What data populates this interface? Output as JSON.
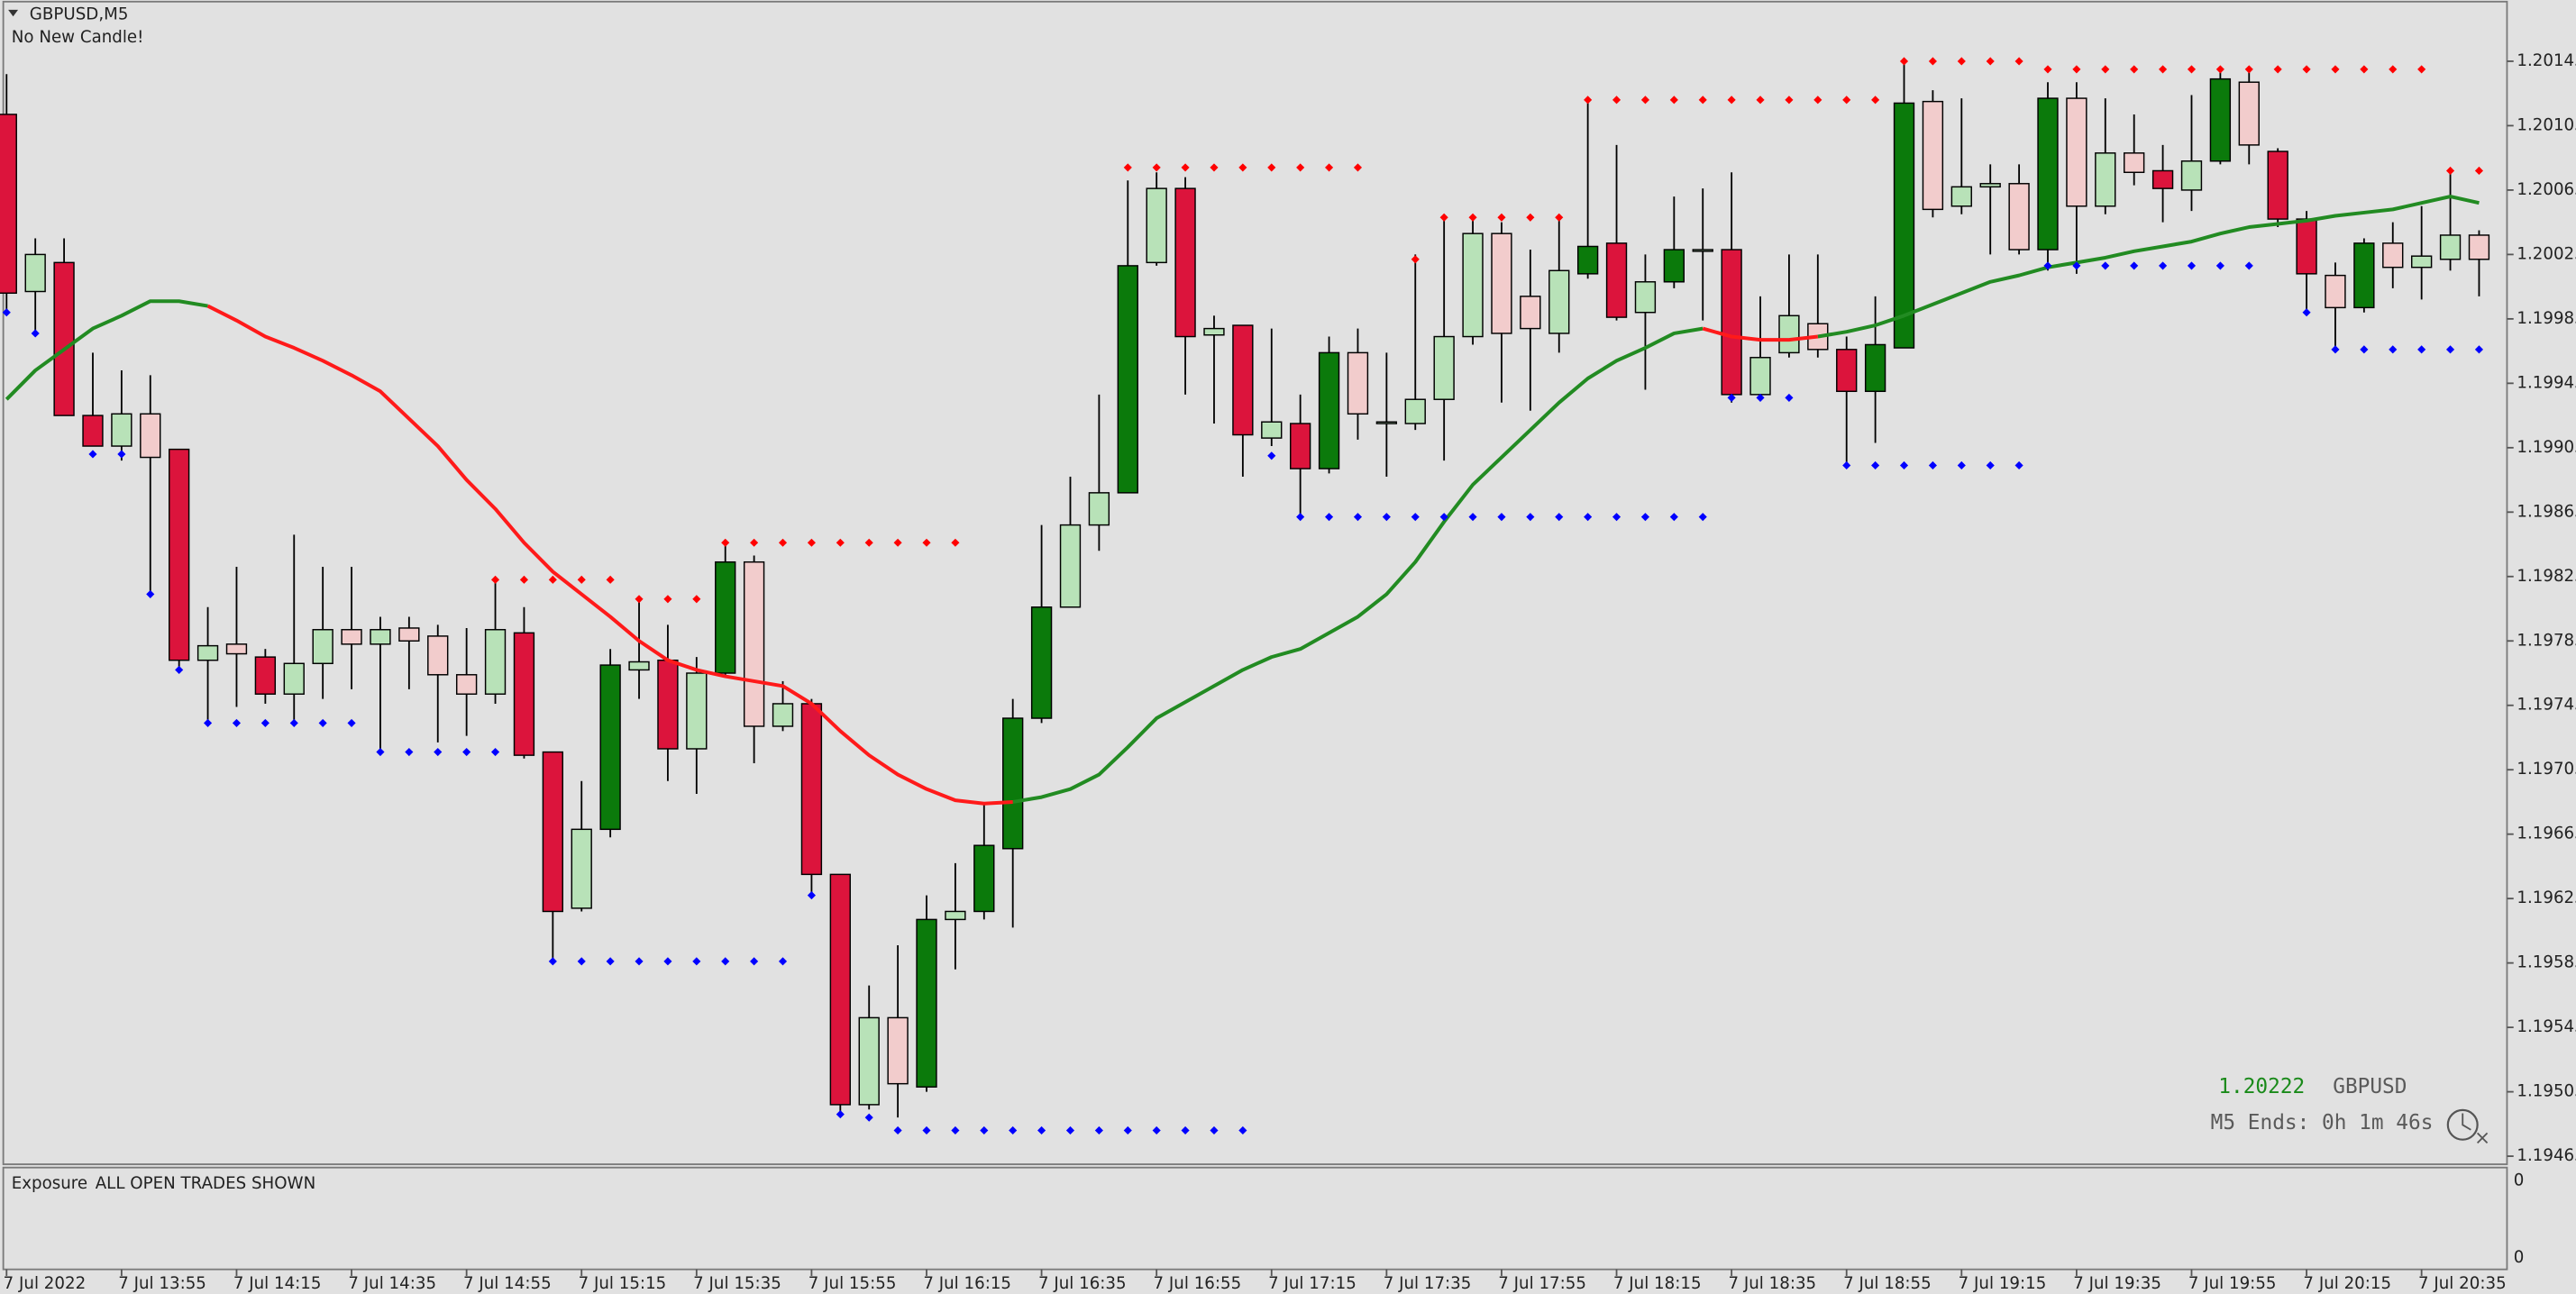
{
  "chart_data": {
    "type": "candlestick",
    "title": "GBPUSD,M5",
    "status": "No New Candle!",
    "ylim": [
      1.19461,
      1.20181
    ],
    "yticks": [
      1.20145,
      1.20105,
      1.20065,
      1.20025,
      1.19985,
      1.19945,
      1.19905,
      1.19865,
      1.19825,
      1.19785,
      1.19745,
      1.19705,
      1.19665,
      1.19625,
      1.19585,
      1.19545,
      1.19505,
      1.19465
    ],
    "grid": false,
    "categories": [
      "7 Jul 2022",
      null,
      null,
      null,
      "7 Jul 13:55",
      null,
      null,
      null,
      "7 Jul 14:15",
      null,
      null,
      null,
      "7 Jul 14:35",
      null,
      null,
      null,
      "7 Jul 14:55",
      null,
      null,
      null,
      "7 Jul 15:15",
      null,
      null,
      null,
      "7 Jul 15:35",
      null,
      null,
      null,
      "7 Jul 15:55",
      null,
      null,
      null,
      "7 Jul 16:15",
      null,
      null,
      null,
      "7 Jul 16:35",
      null,
      null,
      null,
      "7 Jul 16:55",
      null,
      null,
      null,
      "7 Jul 17:15",
      null,
      null,
      null,
      "7 Jul 17:35",
      null,
      null,
      null,
      "7 Jul 17:55",
      null,
      null,
      null,
      "7 Jul 18:15",
      null,
      null,
      null,
      "7 Jul 18:35",
      null,
      null,
      null,
      "7 Jul 18:55",
      null,
      null,
      null,
      "7 Jul 19:15",
      null,
      null,
      null,
      "7 Jul 19:35",
      null,
      null,
      null,
      "7 Jul 19:55",
      null,
      null,
      null,
      "7 Jul 20:15",
      null,
      null,
      null,
      "7 Jul 20:35",
      null,
      null
    ],
    "open": [
      1.20112,
      1.20002,
      1.2002,
      1.19925,
      1.19906,
      1.19926,
      1.19904,
      1.19773,
      1.19783,
      1.19775,
      1.19752,
      1.19771,
      1.19792,
      1.19783,
      1.19793,
      1.19788,
      1.19764,
      1.19752,
      1.1979,
      1.19716,
      1.19619,
      1.19668,
      1.19767,
      1.19773,
      1.19718,
      1.19765,
      1.19834,
      1.19732,
      1.19746,
      1.1964,
      1.19497,
      1.19551,
      1.19508,
      1.19612,
      1.19617,
      1.19656,
      1.19737,
      1.19806,
      1.19857,
      1.19877,
      1.2002,
      1.20066,
      1.19975,
      1.19981,
      1.19911,
      1.1992,
      1.19892,
      1.19964,
      1.19921,
      1.1992,
      1.19935,
      1.19974,
      1.20038,
      1.19999,
      1.19976,
      1.20013,
      1.20032,
      1.19989,
      1.20008,
      1.20028,
      1.20028,
      1.19938,
      1.19964,
      1.19982,
      1.19966,
      1.1994,
      1.19967,
      1.2012,
      1.20055,
      1.20067,
      1.20069,
      1.20028,
      1.20122,
      1.20055,
      1.20088,
      1.20077,
      1.20065,
      1.20083,
      1.20132,
      1.20089,
      1.20047,
      1.20012,
      1.19992,
      1.20032,
      1.20017,
      1.20022,
      1.20037
    ],
    "high": [
      1.20137,
      1.20035,
      1.20035,
      1.19964,
      1.19953,
      1.1995,
      1.19904,
      1.19806,
      1.19831,
      1.1978,
      1.19851,
      1.19831,
      1.19831,
      1.198,
      1.198,
      1.19795,
      1.19793,
      1.19823,
      1.19806,
      1.19716,
      1.19698,
      1.1978,
      1.19811,
      1.19795,
      1.19775,
      1.19848,
      1.19838,
      1.1976,
      1.19749,
      1.1964,
      1.19571,
      1.19596,
      1.19627,
      1.19647,
      1.19683,
      1.19749,
      1.19857,
      1.19887,
      1.19938,
      1.20071,
      1.20076,
      1.20073,
      1.19987,
      1.19981,
      1.19979,
      1.19938,
      1.19974,
      1.19979,
      1.19964,
      1.20025,
      1.2005,
      1.2005,
      1.20045,
      1.20028,
      1.2005,
      1.20122,
      1.20093,
      1.20025,
      1.20061,
      1.20066,
      1.20076,
      1.19999,
      1.20025,
      1.20025,
      1.19974,
      1.19999,
      1.20147,
      1.20127,
      1.20122,
      1.20081,
      1.20081,
      1.20132,
      1.20132,
      1.20122,
      1.20112,
      1.20093,
      1.20124,
      1.2014,
      1.20142,
      1.20091,
      1.20052,
      1.2002,
      1.20035,
      1.20045,
      1.20055,
      1.20076,
      1.2004
    ],
    "low": [
      1.19989,
      1.19974,
      1.19925,
      1.19906,
      1.19897,
      1.19814,
      1.19765,
      1.19736,
      1.19744,
      1.19746,
      1.19736,
      1.19749,
      1.19755,
      1.19717,
      1.19755,
      1.19722,
      1.19726,
      1.19746,
      1.19712,
      1.19586,
      1.19617,
      1.19663,
      1.19749,
      1.19698,
      1.1969,
      1.19763,
      1.19709,
      1.19729,
      1.19627,
      1.19491,
      1.19494,
      1.19489,
      1.19505,
      1.19581,
      1.19612,
      1.19607,
      1.19734,
      1.19806,
      1.19841,
      1.19877,
      1.20018,
      1.19938,
      1.1992,
      1.19887,
      1.19906,
      1.19862,
      1.19889,
      1.1991,
      1.19887,
      1.19916,
      1.19897,
      1.19969,
      1.19933,
      1.19928,
      1.19964,
      1.2001,
      1.19984,
      1.19941,
      1.20004,
      1.19984,
      1.19933,
      1.19936,
      1.19961,
      1.19961,
      1.19894,
      1.19908,
      1.19967,
      1.20048,
      1.2005,
      1.20025,
      1.20025,
      1.20015,
      1.20013,
      1.2005,
      1.20068,
      1.20045,
      1.20052,
      1.20081,
      1.20081,
      1.20042,
      1.19989,
      1.19967,
      1.19989,
      1.20004,
      1.19997,
      1.20015,
      1.19999
    ],
    "close": [
      1.20001,
      1.20025,
      1.19925,
      1.19906,
      1.19926,
      1.19899,
      1.19773,
      1.19782,
      1.19777,
      1.19752,
      1.19771,
      1.19792,
      1.19783,
      1.19792,
      1.19785,
      1.19764,
      1.19752,
      1.19792,
      1.19714,
      1.19617,
      1.19668,
      1.1977,
      1.19772,
      1.19718,
      1.19765,
      1.19834,
      1.19732,
      1.19746,
      1.1964,
      1.19497,
      1.19551,
      1.1951,
      1.19612,
      1.19617,
      1.19658,
      1.19737,
      1.19806,
      1.19857,
      1.19877,
      1.20018,
      1.20066,
      1.19974,
      1.19979,
      1.19913,
      1.19921,
      1.19892,
      1.19964,
      1.19926,
      1.19921,
      1.19935,
      1.19974,
      1.20038,
      1.19976,
      1.19979,
      1.20015,
      1.2003,
      1.19986,
      1.20008,
      1.20028,
      1.20028,
      1.19938,
      1.19961,
      1.19987,
      1.19966,
      1.1994,
      1.19969,
      1.20119,
      1.20053,
      1.20067,
      1.20069,
      1.20028,
      1.20122,
      1.20055,
      1.20088,
      1.20076,
      1.20066,
      1.20083,
      1.20134,
      1.20093,
      1.20047,
      1.20013,
      1.19992,
      1.20032,
      1.20017,
      1.20024,
      1.20037,
      1.20022
    ],
    "colors": [
      "#dc143c",
      "#b8e2b8",
      "#dc143c",
      "#dc143c",
      "#b8e2b8",
      "#f2cccc",
      "#dc143c",
      "#b8e2b8",
      "#f2cccc",
      "#dc143c",
      "#b8e2b8",
      "#b8e2b8",
      "#f2cccc",
      "#b8e2b8",
      "#f2cccc",
      "#f2cccc",
      "#f2cccc",
      "#b8e2b8",
      "#dc143c",
      "#dc143c",
      "#b8e2b8",
      "#0b7a0b",
      "#b8e2b8",
      "#dc143c",
      "#b8e2b8",
      "#0b7a0b",
      "#f2cccc",
      "#b8e2b8",
      "#dc143c",
      "#dc143c",
      "#b8e2b8",
      "#f2cccc",
      "#0b7a0b",
      "#b8e2b8",
      "#0b7a0b",
      "#0b7a0b",
      "#0b7a0b",
      "#b8e2b8",
      "#b8e2b8",
      "#0b7a0b",
      "#b8e2b8",
      "#dc143c",
      "#b8e2b8",
      "#dc143c",
      "#b8e2b8",
      "#dc143c",
      "#0b7a0b",
      "#f2cccc",
      "#b8e2b8",
      "#b8e2b8",
      "#b8e2b8",
      "#b8e2b8",
      "#f2cccc",
      "#f2cccc",
      "#b8e2b8",
      "#0b7a0b",
      "#dc143c",
      "#b8e2b8",
      "#0b7a0b",
      "#b8e2b8",
      "#dc143c",
      "#b8e2b8",
      "#b8e2b8",
      "#f2cccc",
      "#dc143c",
      "#0b7a0b",
      "#0b7a0b",
      "#f2cccc",
      "#b8e2b8",
      "#b8e2b8",
      "#f2cccc",
      "#0b7a0b",
      "#f2cccc",
      "#b8e2b8",
      "#f2cccc",
      "#dc143c",
      "#b8e2b8",
      "#0b7a0b",
      "#f2cccc",
      "#dc143c",
      "#dc143c",
      "#f2cccc",
      "#0b7a0b",
      "#f2cccc",
      "#b8e2b8",
      "#b8e2b8",
      "#f2cccc"
    ],
    "lines": [
      {
        "color": "#228b22",
        "values": [
          1.19935,
          1.19953,
          1.19966,
          1.19979,
          1.19987,
          1.19996,
          1.19996,
          1.19993,
          null,
          null,
          null,
          null,
          null,
          null,
          null,
          null,
          null,
          null,
          null,
          null,
          null,
          null,
          null,
          null,
          null,
          null,
          null,
          null,
          null,
          null,
          null,
          null,
          null,
          null,
          null,
          1.19685,
          1.19688,
          1.19693,
          1.19702,
          1.19719,
          1.19737,
          1.19747,
          1.19757,
          1.19767,
          1.19775,
          1.1978,
          1.1979,
          1.198,
          1.19814,
          1.19834,
          1.19859,
          1.19882,
          1.19899,
          1.19916,
          1.19933,
          1.19948,
          1.19959,
          1.19967,
          1.19976,
          1.19979,
          null,
          null,
          null,
          1.19974,
          1.19977,
          1.19981,
          1.19987,
          1.19994,
          1.20001,
          1.20008,
          1.20012,
          1.20017,
          1.2002,
          1.20023,
          1.20027,
          1.2003,
          1.20033,
          1.20038,
          1.20042,
          1.20044,
          1.20046,
          1.20049,
          1.20051,
          1.20053,
          1.20057,
          1.20061,
          1.20057
        ]
      },
      {
        "color": "#ff1a1a",
        "values": [
          null,
          null,
          null,
          null,
          null,
          null,
          null,
          1.19993,
          1.19984,
          1.19974,
          1.19967,
          1.19959,
          1.1995,
          1.1994,
          1.19923,
          1.19906,
          1.19885,
          1.19867,
          1.19846,
          1.19828,
          1.19814,
          1.198,
          1.19785,
          1.19773,
          1.19767,
          1.19763,
          1.1976,
          1.19757,
          1.19746,
          1.19729,
          1.19714,
          1.19702,
          1.19693,
          1.19686,
          1.19684,
          1.19685,
          null,
          null,
          null,
          null,
          null,
          null,
          null,
          null,
          null,
          null,
          null,
          null,
          null,
          null,
          null,
          null,
          null,
          null,
          null,
          null,
          null,
          null,
          null,
          1.19979,
          1.19974,
          1.19972,
          1.19972,
          1.19974,
          null,
          null,
          null,
          null,
          null,
          null,
          null,
          null,
          null,
          null,
          null,
          null,
          null,
          null,
          null,
          null,
          null,
          null,
          null,
          null,
          null,
          null,
          null
        ]
      }
    ],
    "levels": [
      {
        "color": "#ff0000",
        "values": [
          null,
          null,
          null,
          null,
          null,
          null,
          null,
          null,
          null,
          null,
          null,
          null,
          null,
          null,
          null,
          null,
          null,
          1.19823,
          1.19823,
          1.19823,
          1.19823,
          1.19823,
          1.19811,
          1.19811,
          1.19811,
          1.19846,
          1.19846,
          1.19846,
          1.19846,
          1.19846,
          1.19846,
          1.19846,
          1.19846,
          1.19846,
          null,
          null,
          null,
          null,
          null,
          1.20079,
          1.20079,
          1.20079,
          1.20079,
          1.20079,
          1.20079,
          1.20079,
          1.20079,
          1.20079,
          null,
          1.20022,
          1.20048,
          1.20048,
          1.20048,
          1.20048,
          1.20048,
          1.20121,
          1.20121,
          1.20121,
          1.20121,
          1.20121,
          1.20121,
          1.20121,
          1.20121,
          1.20121,
          1.20121,
          1.20121,
          1.20145,
          1.20145,
          1.20145,
          1.20145,
          1.20145,
          1.2014,
          1.2014,
          1.2014,
          1.2014,
          1.2014,
          1.2014,
          1.2014,
          1.2014,
          1.2014,
          1.2014,
          1.2014,
          1.2014,
          1.2014,
          1.2014,
          1.20077,
          1.20077
        ]
      },
      {
        "color": "#0000ff",
        "values": [
          1.19989,
          1.19976,
          null,
          1.19901,
          1.19901,
          1.19814,
          1.19767,
          1.19734,
          1.19734,
          1.19734,
          1.19734,
          1.19734,
          1.19734,
          1.19716,
          1.19716,
          1.19716,
          1.19716,
          1.19716,
          null,
          1.19586,
          1.19586,
          1.19586,
          1.19586,
          1.19586,
          1.19586,
          1.19586,
          1.19586,
          1.19586,
          1.19627,
          1.19491,
          1.19489,
          1.19481,
          1.19481,
          1.19481,
          1.19481,
          1.19481,
          1.19481,
          1.19481,
          1.19481,
          1.19481,
          1.19481,
          1.19481,
          1.19481,
          1.19481,
          1.199,
          1.19862,
          1.19862,
          1.19862,
          1.19862,
          1.19862,
          1.19862,
          1.19862,
          1.19862,
          1.19862,
          1.19862,
          1.19862,
          1.19862,
          1.19862,
          1.19862,
          1.19862,
          1.19936,
          1.19936,
          1.19936,
          null,
          1.19894,
          1.19894,
          1.19894,
          1.19894,
          1.19894,
          1.19894,
          1.19894,
          1.20018,
          1.20018,
          1.20018,
          1.20018,
          1.20018,
          1.20018,
          1.20018,
          1.20018,
          null,
          1.19989,
          1.19966,
          1.19966,
          1.19966,
          1.19966,
          1.19966,
          1.19966
        ]
      }
    ],
    "info": {
      "price": 1.20222,
      "symbol": "GBPUSD",
      "timer": "M5 Ends: 0h 1m 46s"
    },
    "indicator_window": {
      "title": "Exposure",
      "note": "ALL OPEN TRADES SHOWN",
      "axis_labels": [
        "0",
        "0"
      ]
    }
  }
}
